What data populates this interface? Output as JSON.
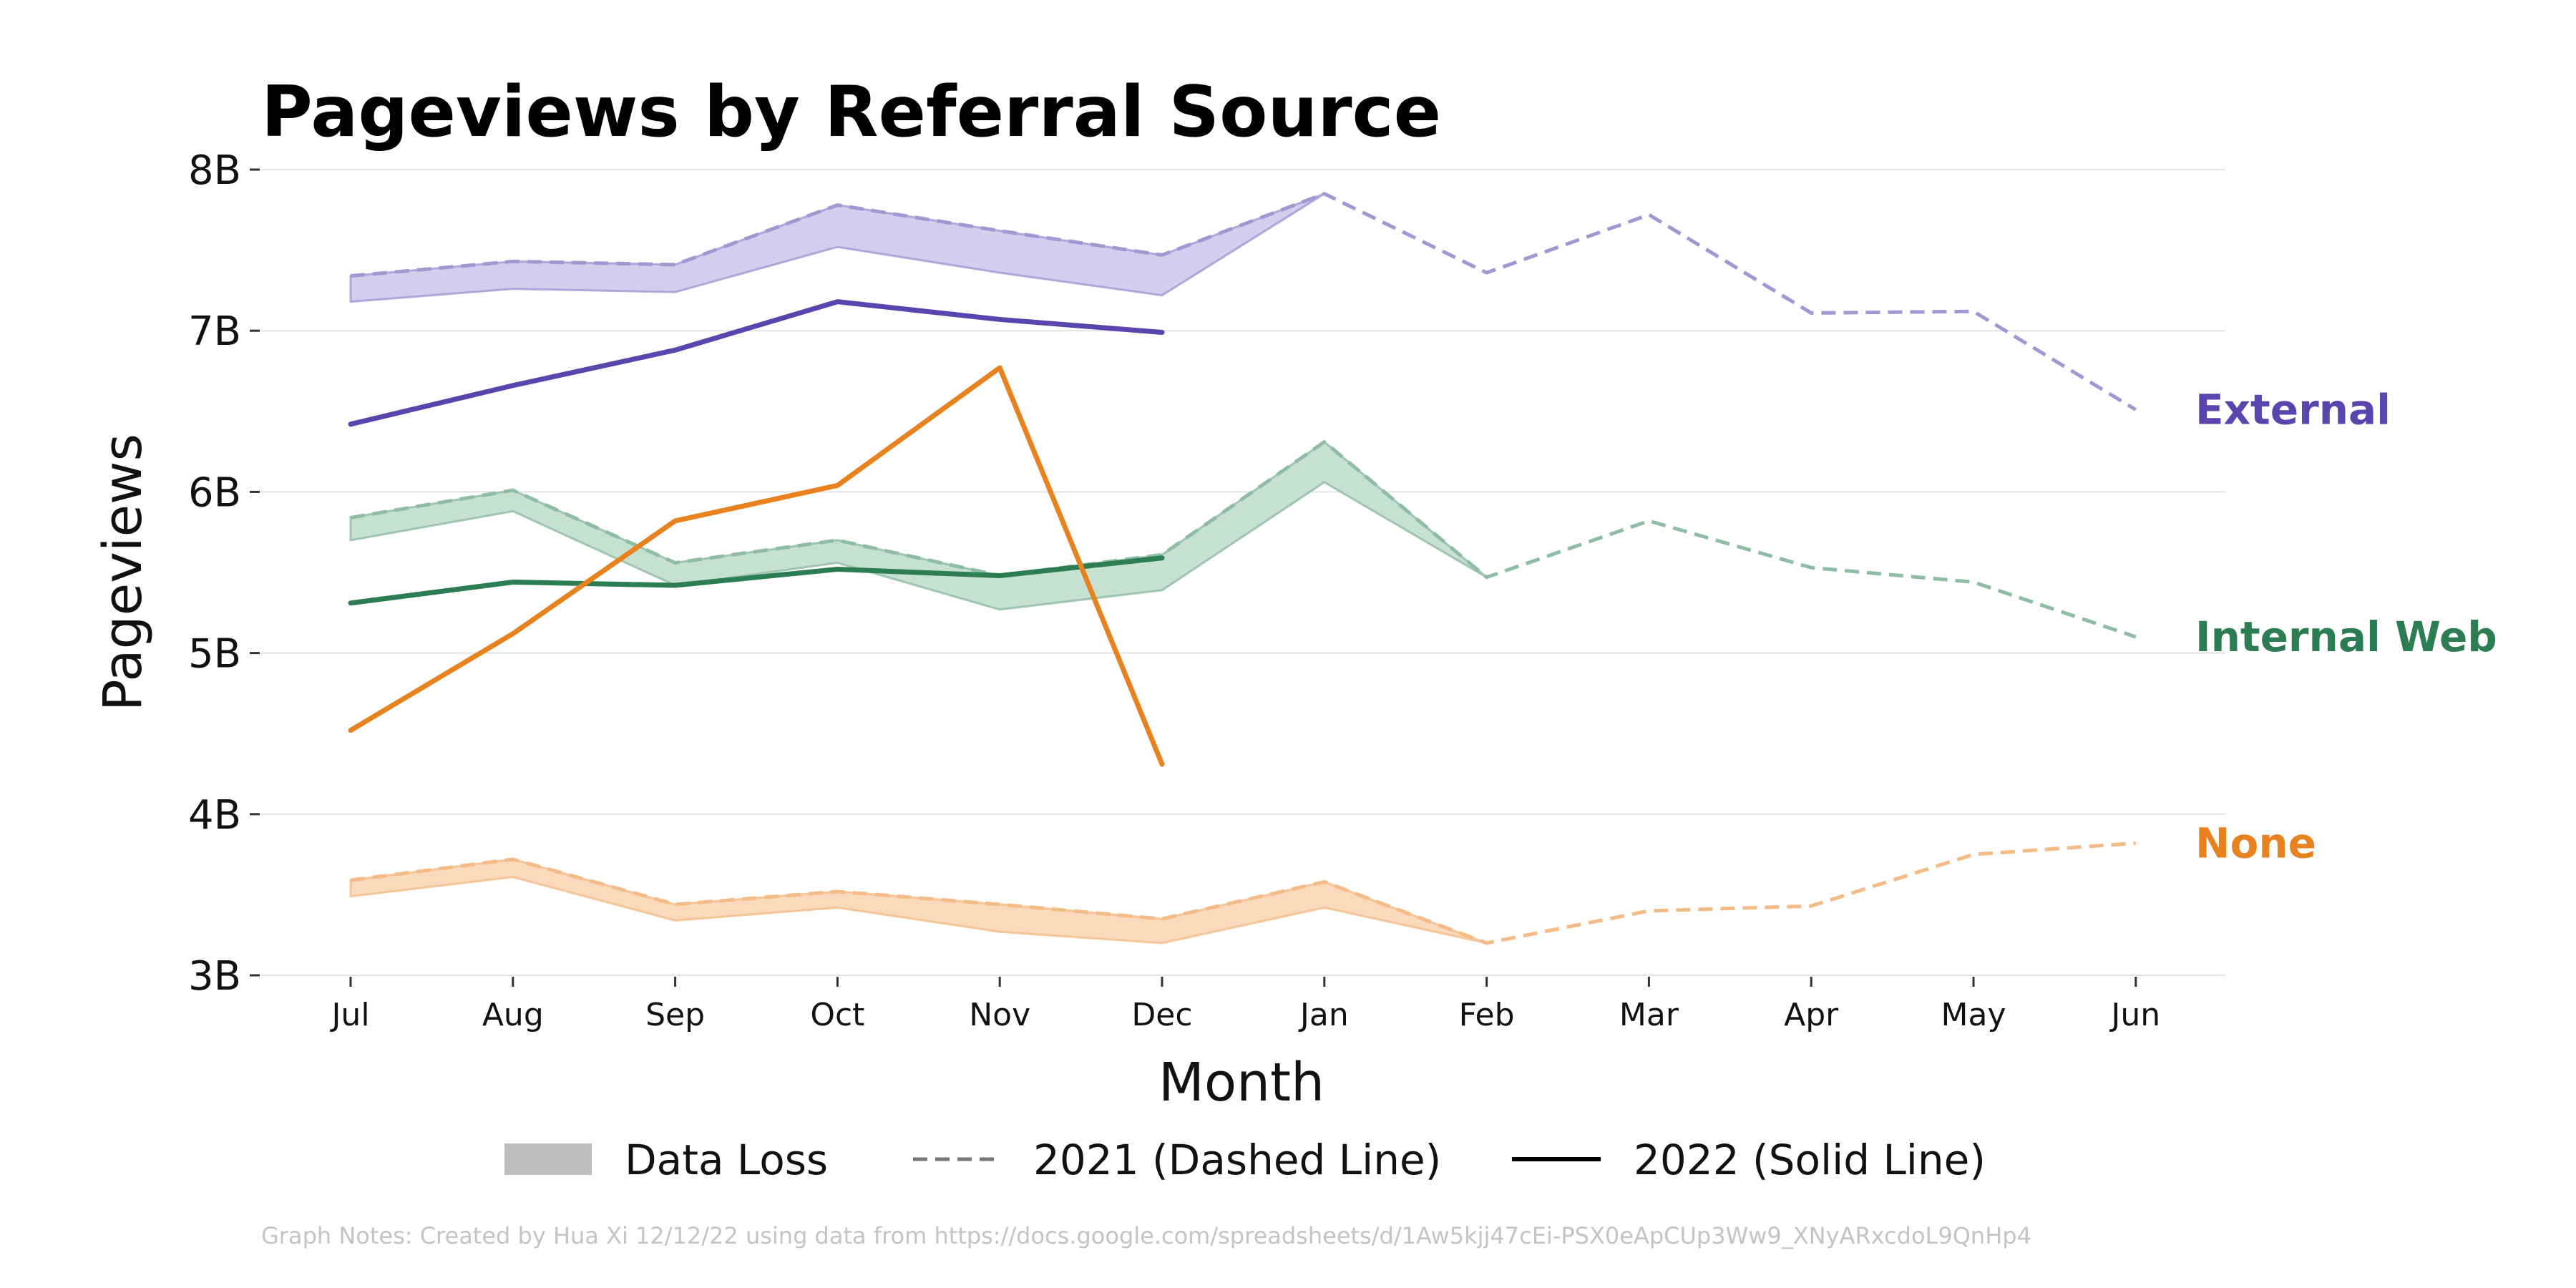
{
  "chart_data": {
    "type": "line",
    "title": "Pageviews by Referral Source",
    "xlabel": "Month",
    "ylabel": "Pageviews",
    "categories": [
      "Jul",
      "Aug",
      "Sep",
      "Oct",
      "Nov",
      "Dec",
      "Jan",
      "Feb",
      "Mar",
      "Apr",
      "May",
      "Jun"
    ],
    "yticks": [
      "3B",
      "4B",
      "5B",
      "6B",
      "7B",
      "8B"
    ],
    "ylim": [
      3,
      8
    ],
    "grid": "horizontal",
    "series": [
      {
        "name": "External",
        "color": "#5a45ae",
        "light_color": "#a397d3",
        "fill_color": "#d3cdee",
        "values_2021": [
          7.34,
          7.43,
          7.41,
          7.78,
          7.62,
          7.47,
          7.85,
          7.36,
          7.72,
          7.11,
          7.12,
          6.51
        ],
        "values_2022": [
          6.42,
          6.66,
          6.88,
          7.18,
          7.07,
          6.99
        ],
        "data_loss_lower": [
          7.18,
          7.26,
          7.24,
          7.52,
          7.36,
          7.22,
          7.85
        ]
      },
      {
        "name": "Internal Web",
        "color": "#2d7d53",
        "light_color": "#8fbca5",
        "fill_color": "#c6e0d2",
        "values_2021": [
          5.84,
          6.01,
          5.56,
          5.7,
          5.48,
          5.61,
          6.31,
          5.47,
          5.82,
          5.53,
          5.44,
          5.1
        ],
        "values_2022": [
          5.31,
          5.44,
          5.42,
          5.52,
          5.48,
          5.59
        ],
        "data_loss_lower": [
          5.7,
          5.88,
          5.42,
          5.56,
          5.27,
          5.39,
          6.06,
          5.47
        ]
      },
      {
        "name": "None",
        "color": "#e8821f",
        "light_color": "#f4bb86",
        "fill_color": "#fad9bd",
        "values_2021": [
          3.59,
          3.72,
          3.44,
          3.52,
          3.44,
          3.35,
          3.58,
          3.2,
          3.4,
          3.43,
          3.75,
          3.82
        ],
        "values_2022": [
          4.52,
          5.12,
          5.82,
          6.04,
          6.77,
          4.31
        ],
        "data_loss_lower": [
          3.49,
          3.61,
          3.34,
          3.42,
          3.27,
          3.2,
          3.42,
          3.2
        ]
      }
    ],
    "legend": {
      "placement": "bottom",
      "items": [
        {
          "key": "data_loss",
          "label": "Data Loss",
          "color": "#bdbdbd"
        },
        {
          "key": "dashed",
          "label": "2021 (Dashed Line)",
          "color": "#777777"
        },
        {
          "key": "solid",
          "label": "2022 (Solid Line)",
          "color": "#000000"
        }
      ]
    },
    "note": "Graph Notes: Created by Hua Xi 12/12/22 using data from https://docs.google.com/spreadsheets/d/1Aw5kjj47cEi-PSX0eApCUp3Ww9_XNyARxcdoL9QnHp4"
  }
}
